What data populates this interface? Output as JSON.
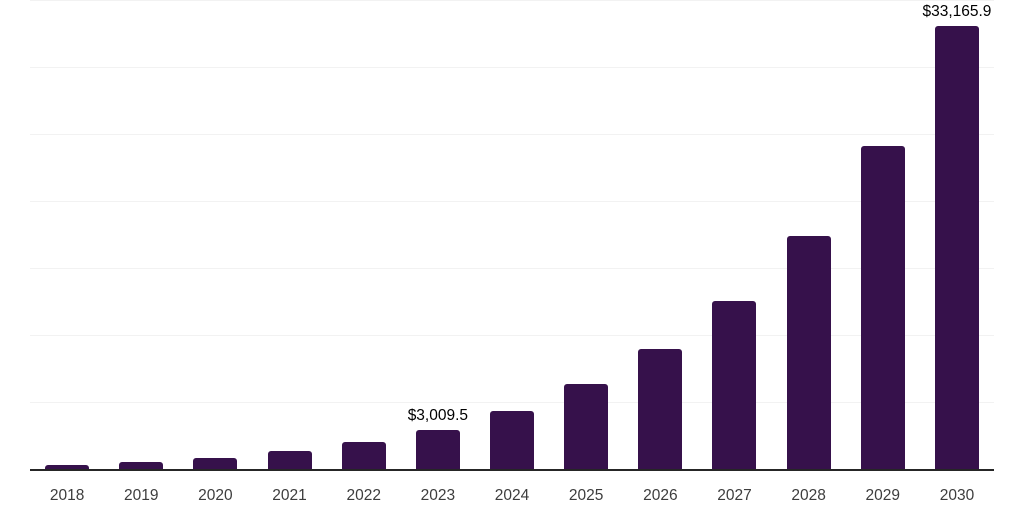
{
  "page": {
    "background_color": "#ffffff"
  },
  "chart_data": {
    "type": "bar",
    "title": "",
    "categories": [
      "2018",
      "2019",
      "2020",
      "2021",
      "2022",
      "2023",
      "2024",
      "2025",
      "2026",
      "2027",
      "2028",
      "2029",
      "2030"
    ],
    "values": [
      370,
      600,
      900,
      1420,
      2090,
      3009.5,
      4400,
      6420,
      9030,
      12610,
      17460,
      24180,
      33165.9
    ],
    "data_labels": [
      "",
      "",
      "",
      "",
      "",
      "$3,009.5",
      "",
      "",
      "",
      "",
      "",
      "",
      "$33,165.9"
    ],
    "xlabel": "",
    "ylabel": "",
    "ylim": [
      0,
      35000
    ],
    "gridline_step": 5000,
    "grid": true,
    "legend": false,
    "colors": {
      "bar": "#36114B",
      "axis_line": "#262626",
      "gridline": "#f2f2f2",
      "tick_label": "#3d3d3d",
      "data_label": "#000000"
    }
  }
}
